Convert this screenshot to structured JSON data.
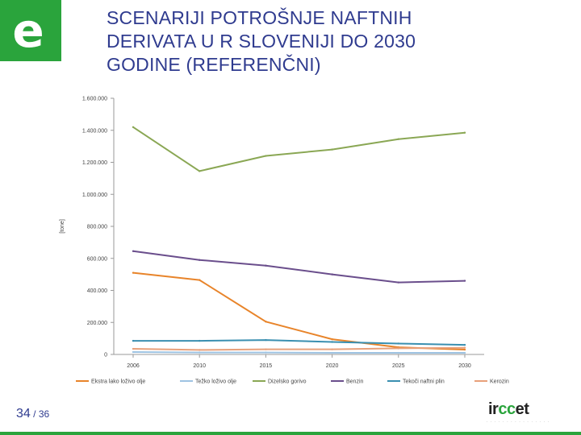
{
  "slide": {
    "title_lines": [
      "SCENARIJI POTROŠNJE NAFTNIH",
      "DERIVATA U R SLOVENIJI DO 2030",
      "GODINE (REFERENČNI)"
    ],
    "page_current": "34",
    "page_separator": " / ",
    "page_total": "36",
    "logo_letter": "e",
    "partner_logo_word": "irccet",
    "partner_logo_highlight": "cc",
    "accent_color": "#2aa43c",
    "title_color": "#2f3b8f"
  },
  "chart_data": {
    "type": "line",
    "title": "",
    "xlabel": "",
    "ylabel": "[tone]",
    "x": [
      2006,
      2010,
      2015,
      2020,
      2025,
      2030
    ],
    "x_tick_labels": [
      "2006",
      "2010",
      "2015",
      "2020",
      "2025",
      "2030"
    ],
    "ylim": [
      0,
      1600000
    ],
    "y_ticks": [
      0,
      200000,
      400000,
      600000,
      800000,
      1000000,
      1200000,
      1400000,
      1600000
    ],
    "y_tick_labels": [
      "0",
      "200.000",
      "400.000",
      "600.000",
      "800.000",
      "1.000.000",
      "1.200.000",
      "1.400.000",
      "1.600.000"
    ],
    "grid": false,
    "legend_position": "bottom",
    "series": [
      {
        "name": "Ekstra lako loživo olje",
        "color": "#e8842a",
        "values": [
          510000,
          465000,
          205000,
          95000,
          45000,
          30000
        ]
      },
      {
        "name": "Težko loživo olje",
        "color": "#9ec3e2",
        "values": [
          15000,
          12000,
          12000,
          10000,
          10000,
          10000
        ]
      },
      {
        "name": "Dizelsko gorivo",
        "color": "#8aa754",
        "values": [
          1420000,
          1145000,
          1240000,
          1280000,
          1345000,
          1385000
        ]
      },
      {
        "name": "Benzin",
        "color": "#6a4e8c",
        "values": [
          645000,
          590000,
          555000,
          500000,
          450000,
          460000
        ]
      },
      {
        "name": "Tekoči naftni plin",
        "color": "#3a8fb0",
        "values": [
          85000,
          85000,
          90000,
          78000,
          68000,
          60000
        ]
      },
      {
        "name": "Kerozin",
        "color": "#e8a07a",
        "values": [
          35000,
          28000,
          32000,
          32000,
          38000,
          42000
        ]
      }
    ]
  }
}
